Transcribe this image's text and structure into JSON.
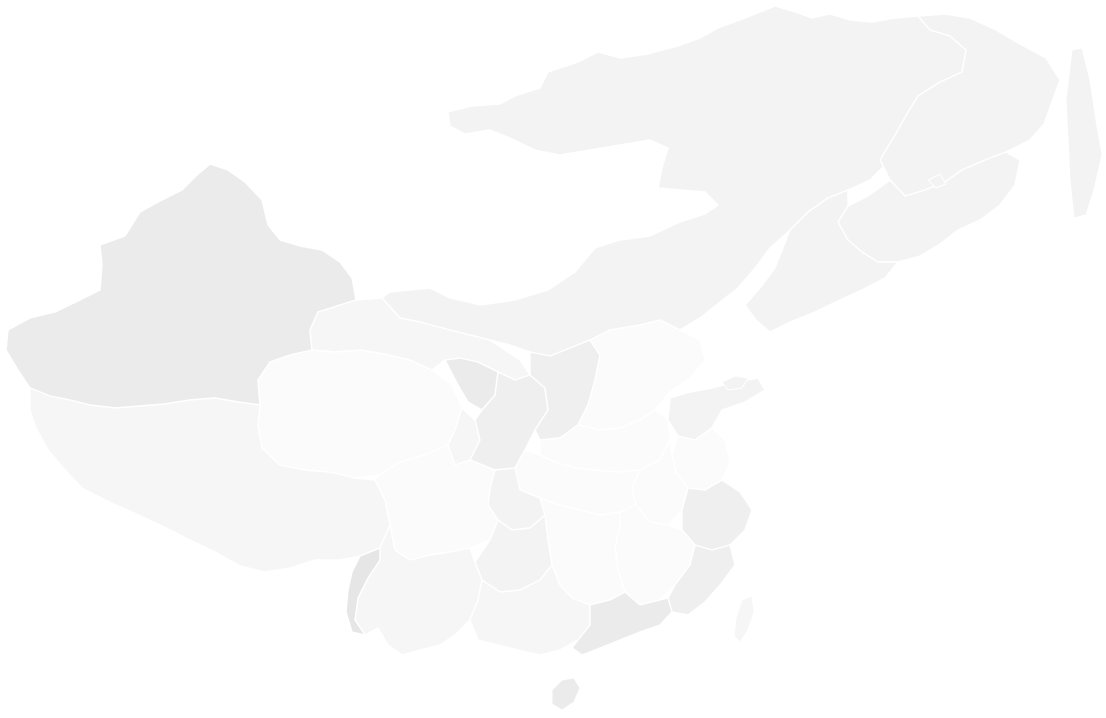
{
  "map": {
    "background": "#ffffff",
    "stroke": "#ffffff",
    "palette": {
      "lightest": "#fbfbfb",
      "lighter": "#f6f6f6",
      "light": "#f3f3f3",
      "mid": "#efefef",
      "dark": "#ebebeb",
      "darkest": "#e6e6e6"
    },
    "labels_shown": false
  }
}
